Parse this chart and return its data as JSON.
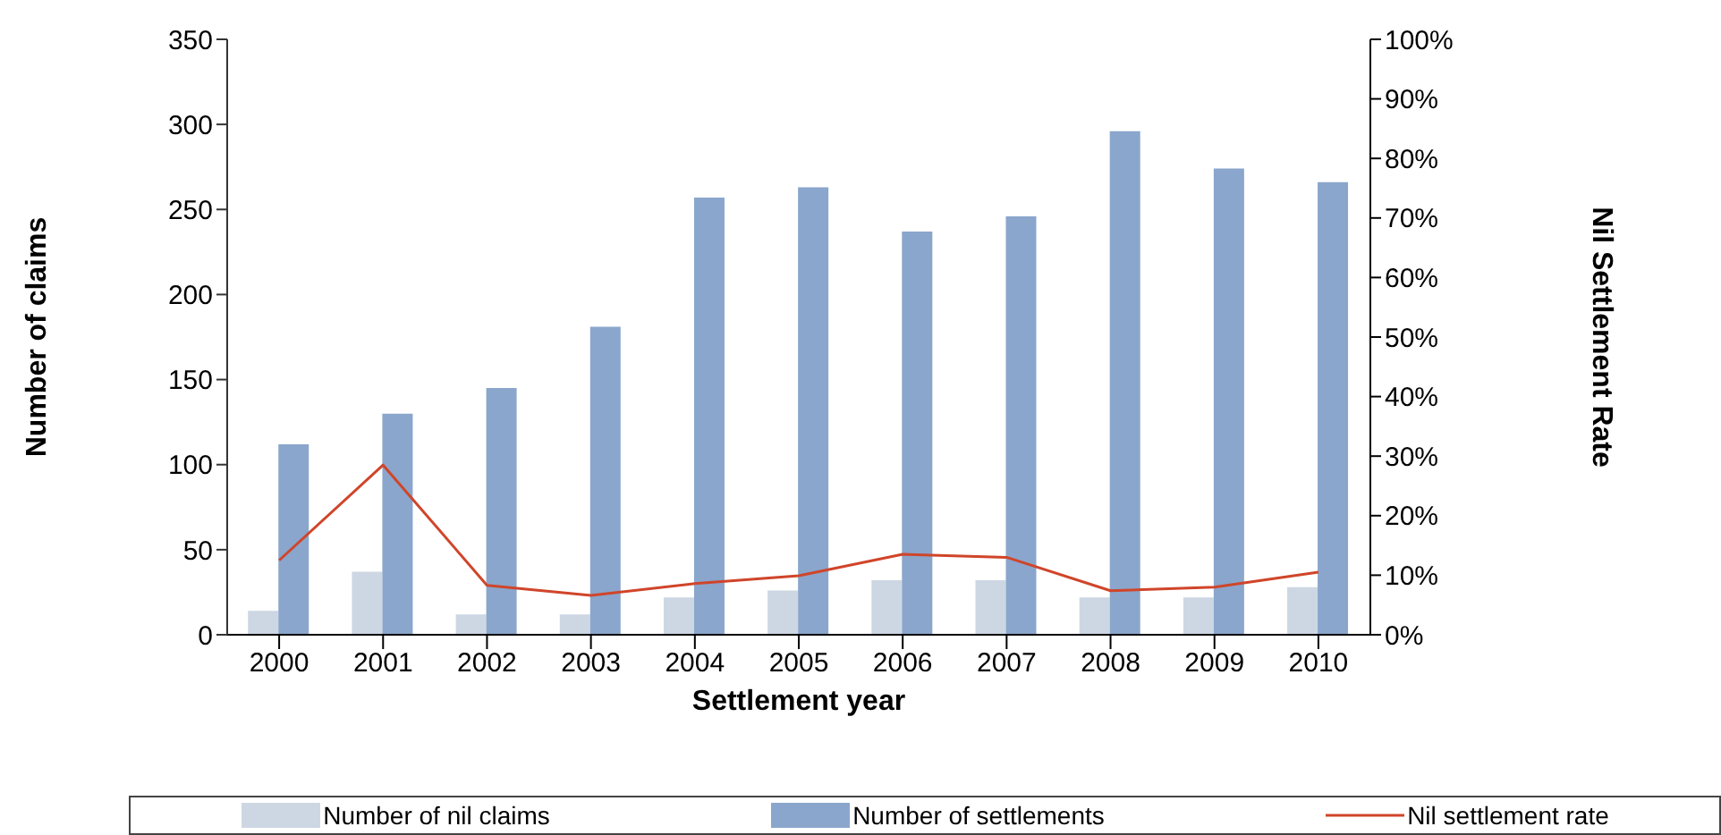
{
  "chart_data": {
    "type": "bar",
    "xlabel": "Settlement year",
    "ylabel": "Number of claims",
    "y2label": "Nil Settlement Rate",
    "categories": [
      "2000",
      "2001",
      "2002",
      "2003",
      "2004",
      "2005",
      "2006",
      "2007",
      "2008",
      "2009",
      "2010"
    ],
    "series": [
      {
        "name": "Number of nil claims",
        "color": "#cdd7e3",
        "values": [
          14,
          37,
          12,
          12,
          22,
          26,
          32,
          32,
          22,
          22,
          28
        ]
      },
      {
        "name": "Number of settlements",
        "color": "#8aa6cc",
        "values": [
          112,
          130,
          145,
          181,
          257,
          263,
          237,
          246,
          296,
          274,
          266
        ]
      },
      {
        "name": "Nil settlement rate",
        "type": "line",
        "axis": "y2",
        "color": "#d0452a",
        "marker": "none",
        "values": [
          0.125,
          0.285,
          0.083,
          0.066,
          0.086,
          0.099,
          0.135,
          0.13,
          0.074,
          0.08,
          0.105
        ]
      }
    ],
    "ylim": [
      0,
      350
    ],
    "yticks": [
      0,
      50,
      100,
      150,
      200,
      250,
      300,
      350
    ],
    "y2lim": [
      0,
      1
    ],
    "y2ticks": [
      {
        "value": 0,
        "label": "0%"
      },
      {
        "value": 0.1,
        "label": "10%"
      },
      {
        "value": 0.2,
        "label": "20%"
      },
      {
        "value": 0.3,
        "label": "30%"
      },
      {
        "value": 0.4,
        "label": "40%"
      },
      {
        "value": 0.5,
        "label": "50%"
      },
      {
        "value": 0.6,
        "label": "60%"
      },
      {
        "value": 0.7,
        "label": "70%"
      },
      {
        "value": 0.8,
        "label": "80%"
      },
      {
        "value": 0.9,
        "label": "90%"
      },
      {
        "value": 1,
        "label": "100%"
      }
    ],
    "grid": false,
    "legend": "bottom"
  }
}
